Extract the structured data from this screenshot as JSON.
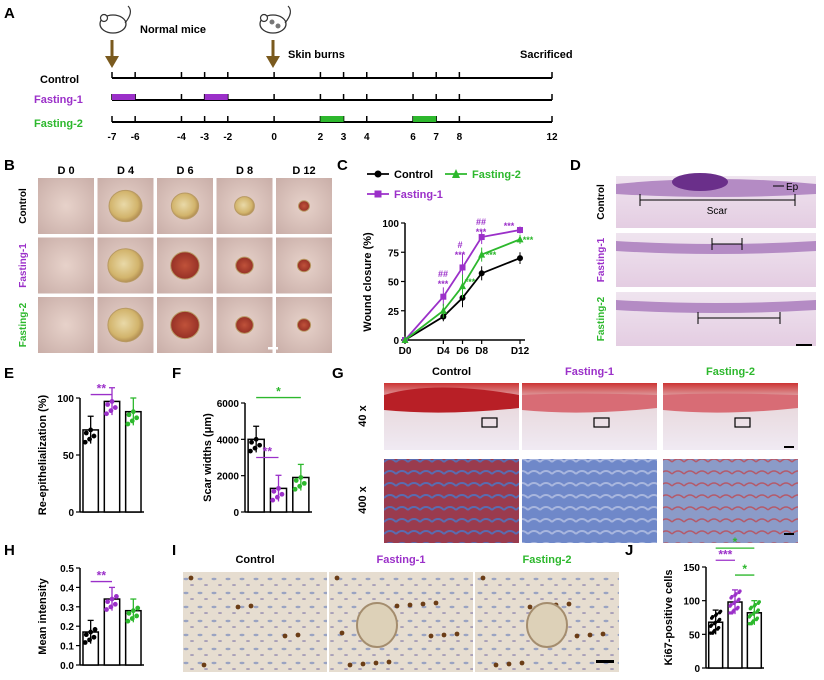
{
  "colors": {
    "control": "#000000",
    "fasting1": "#9b30c9",
    "fasting2": "#2db82d",
    "marker_arrow": "#7a5a1e"
  },
  "panels": {
    "A": "A",
    "B": "B",
    "C": "C",
    "D": "D",
    "E": "E",
    "F": "F",
    "G": "G",
    "H": "H",
    "I": "I",
    "J": "J"
  },
  "panelA": {
    "normal_mice": "Normal mice",
    "skin_burns": "Skin burns",
    "sacrificed": "Sacrificed",
    "rows": [
      "Control",
      "Fasting-1",
      "Fasting-2"
    ],
    "days": [
      -7,
      -6,
      -4,
      -3,
      -2,
      0,
      2,
      3,
      4,
      6,
      7,
      8,
      12
    ],
    "day_labels": [
      "-7",
      "-6",
      "-4",
      "-3",
      "-2",
      "0",
      "2",
      "3",
      "4",
      "6",
      "7",
      "8",
      "12"
    ],
    "fasting1_periods": [
      [
        -7,
        -6
      ],
      [
        -3,
        -2
      ]
    ],
    "fasting2_periods": [
      [
        2,
        3
      ],
      [
        6,
        7
      ]
    ]
  },
  "panelB": {
    "cols": [
      "D 0",
      "D 4",
      "D 6",
      "D 8",
      "D 12"
    ],
    "rows": [
      "Control",
      "Fasting-1",
      "Fasting-2"
    ]
  },
  "chart_data": [
    {
      "type": "line",
      "panel": "C",
      "legend": [
        "Control",
        "Fasting-2",
        "Fasting-1"
      ],
      "ylabel": "Wound closure (%)",
      "x_tick_labels": [
        "D0",
        "D4",
        "D6",
        "D8",
        "D12"
      ],
      "x": [
        0,
        4,
        6,
        8,
        12
      ],
      "ylim": [
        0,
        100
      ],
      "yticks": [
        "0",
        "25",
        "50",
        "75",
        "100"
      ],
      "series": [
        {
          "name": "Control",
          "values": [
            0,
            20,
            36,
            57,
            70
          ]
        },
        {
          "name": "Fasting-1",
          "values": [
            0,
            37,
            62,
            88,
            94
          ]
        },
        {
          "name": "Fasting-2",
          "values": [
            0,
            25,
            46,
            73,
            86
          ]
        }
      ],
      "annotations": [
        "##",
        "***",
        "#",
        "***",
        "##",
        "***",
        "***",
        "***",
        "***",
        "***",
        "***"
      ]
    },
    {
      "type": "bar",
      "panel": "E",
      "ylabel": "Re-epithelialization (%)",
      "categories": [
        "Control",
        "Fasting-1",
        "Fasting-2"
      ],
      "values": [
        72,
        97,
        88
      ],
      "ylim": [
        0,
        100
      ],
      "yticks": [
        "0",
        "50",
        "100"
      ],
      "significance": [
        "**"
      ]
    },
    {
      "type": "bar",
      "panel": "F",
      "ylabel": "Scar widths (μm)",
      "categories": [
        "Control",
        "Fasting-1",
        "Fasting-2"
      ],
      "values": [
        4000,
        1300,
        1900
      ],
      "ylim": [
        0,
        6000
      ],
      "yticks": [
        "0",
        "2000",
        "4000",
        "6000"
      ],
      "significance": [
        "*",
        "**"
      ]
    },
    {
      "type": "bar",
      "panel": "H",
      "ylabel": "Mean intensity",
      "categories": [
        "Control",
        "Fasting-1",
        "Fasting-2"
      ],
      "values": [
        0.17,
        0.34,
        0.28
      ],
      "ylim": [
        0,
        0.5
      ],
      "yticks": [
        "0.0",
        "0.1",
        "0.2",
        "0.3",
        "0.4",
        "0.5"
      ],
      "significance": [
        "**"
      ]
    },
    {
      "type": "bar",
      "panel": "J",
      "ylabel": "Ki67-positive cells",
      "categories": [
        "Control",
        "Fasting-1",
        "Fasting-2"
      ],
      "values": [
        68,
        98,
        82
      ],
      "ylim": [
        0,
        150
      ],
      "yticks": [
        "0",
        "50",
        "100",
        "150"
      ],
      "significance": [
        "*",
        "***",
        "*"
      ]
    }
  ],
  "panelD": {
    "rows": [
      "Control",
      "Fasting-1",
      "Fasting-2"
    ],
    "scar": "Scar",
    "ep": "Ep"
  },
  "panelG": {
    "cols": [
      "Control",
      "Fasting-1",
      "Fasting-2"
    ],
    "rows": [
      "40 x",
      "400 x"
    ]
  },
  "panelI": {
    "cols": [
      "Control",
      "Fasting-1",
      "Fasting-2"
    ]
  }
}
